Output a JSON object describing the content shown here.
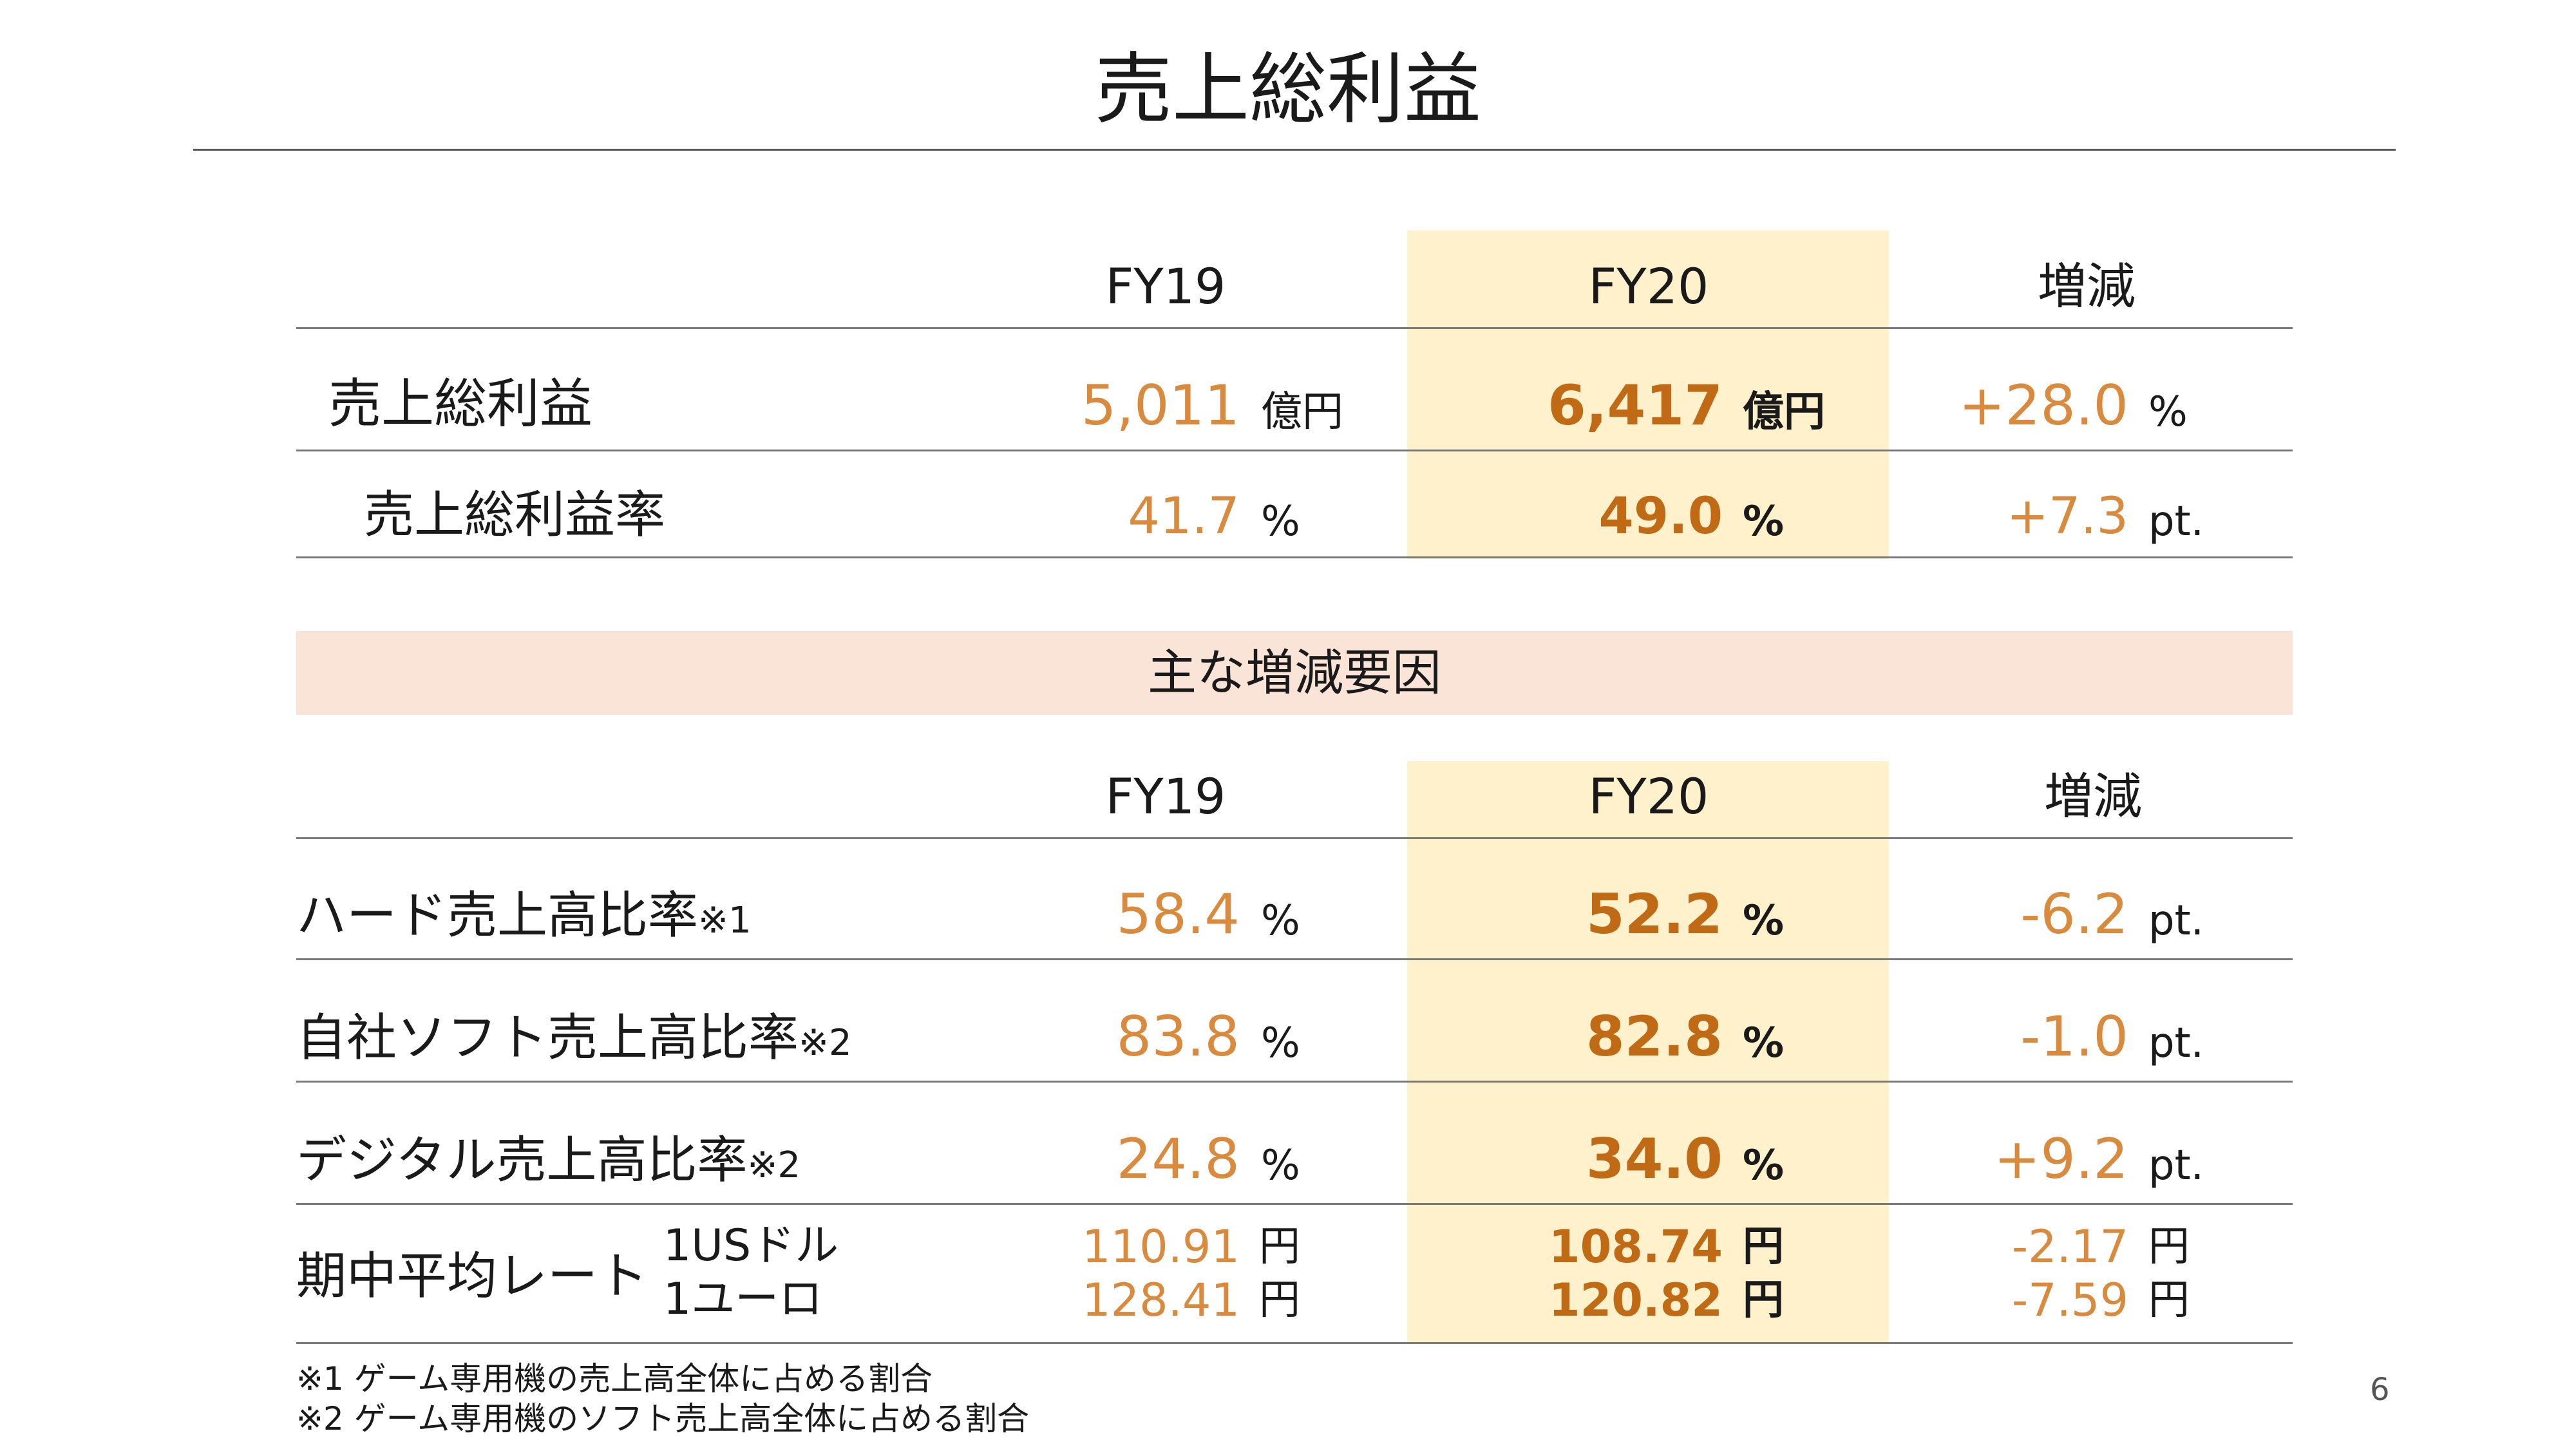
{
  "title": "売上総利益",
  "table1": {
    "headers": [
      "FY19",
      "FY20",
      "増減"
    ],
    "rows": [
      {
        "label": "売上総利益",
        "fy19": "5,011",
        "fy19_unit": "億円",
        "fy20": "6,417",
        "fy20_unit": "億円",
        "diff": "+28.0",
        "diff_unit": "%"
      },
      {
        "label": "売上総利益率",
        "fy19": "41.7",
        "fy19_unit": "%",
        "fy20": "49.0",
        "fy20_unit": "%",
        "diff": "+7.3",
        "diff_unit": "pt."
      }
    ]
  },
  "factors_heading": "主な増減要因",
  "table2": {
    "headers": [
      "FY19",
      "FY20",
      "増減"
    ],
    "rows": [
      {
        "label": "ハード売上高比率",
        "note": "※1",
        "fy19": "58.4",
        "fy19_unit": "%",
        "fy20": "52.2",
        "fy20_unit": "%",
        "diff": "-6.2",
        "diff_unit": "pt."
      },
      {
        "label": "自社ソフト売上高比率",
        "note": "※2",
        "fy19": "83.8",
        "fy19_unit": "%",
        "fy20": "82.8",
        "fy20_unit": "%",
        "diff": "-1.0",
        "diff_unit": "pt."
      },
      {
        "label": "デジタル売上高比率",
        "note": "※2",
        "fy19": "24.8",
        "fy19_unit": "%",
        "fy20": "34.0",
        "fy20_unit": "%",
        "diff": "+9.2",
        "diff_unit": "pt."
      }
    ],
    "rate": {
      "label": "期中平均レート",
      "usd": {
        "label": "1USドル",
        "fy19": "110.91",
        "fy20": "108.74",
        "diff": "-2.17",
        "unit": "円"
      },
      "eur": {
        "label": "1ユーロ",
        "fy19": "128.41",
        "fy20": "120.82",
        "diff": "-7.59",
        "unit": "円"
      }
    }
  },
  "footnotes": [
    "※1 ゲーム専用機の売上高全体に占める割合",
    "※2 ゲーム専用機のソフト売上高全体に占める割合"
  ],
  "page_number": "6",
  "colors": {
    "value": "#d98a3c",
    "value_bold": "#c06a16",
    "highlight": "#fff1cc",
    "band": "#f9e4d7"
  }
}
